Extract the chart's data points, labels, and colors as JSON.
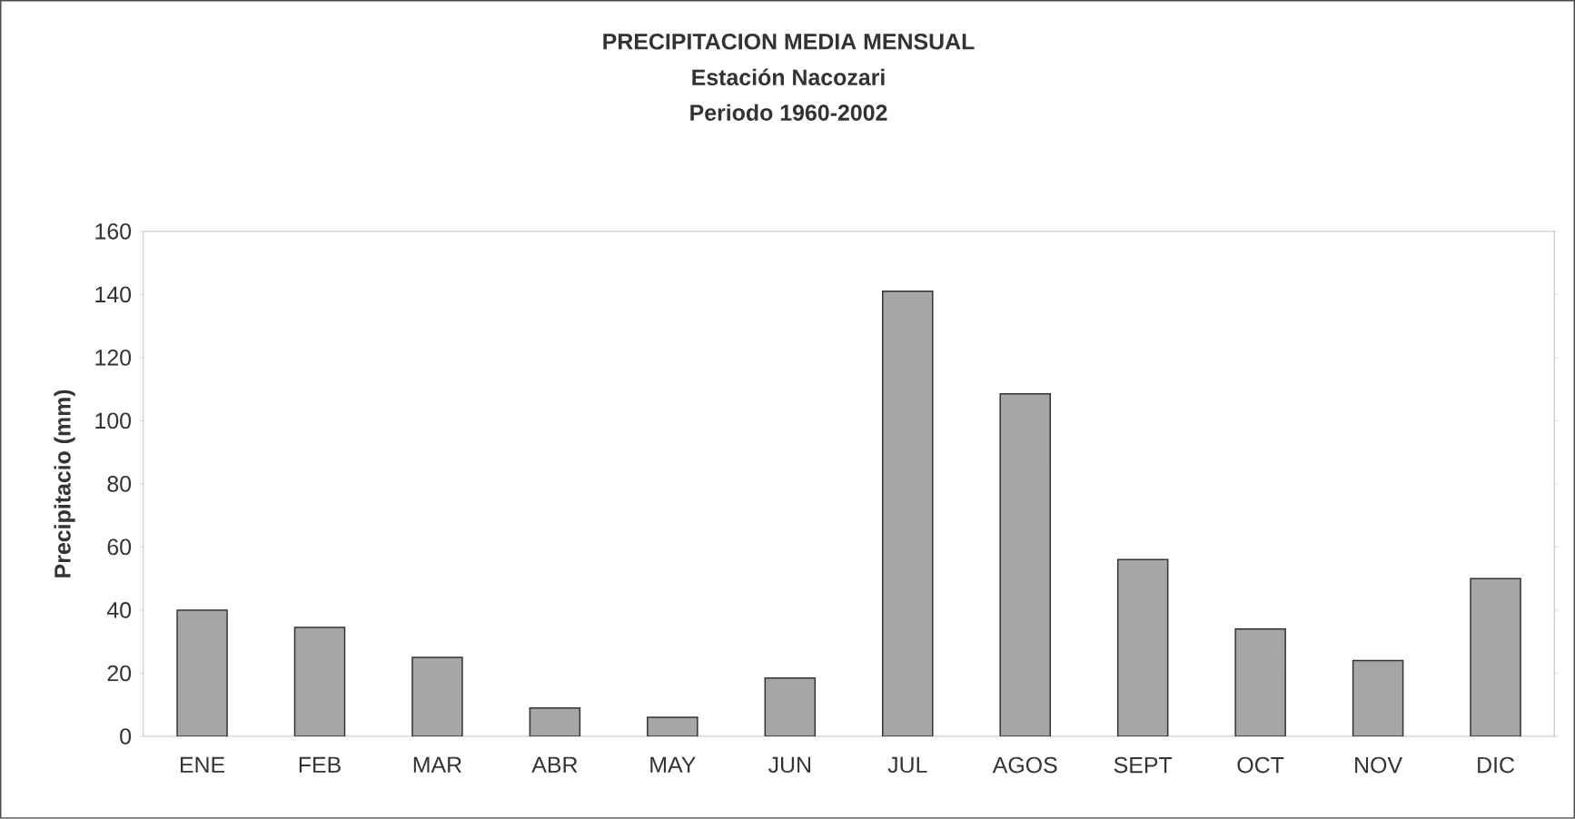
{
  "chart_data": {
    "type": "bar",
    "title": "PRECIPITACION MEDIA MENSUAL",
    "subtitle": "Estación Nacozari",
    "annotations": [
      "Periodo 1960-2002"
    ],
    "ylabel": "Precipitacio (mm)",
    "categories": [
      "ENE",
      "FEB",
      "MAR",
      "ABR",
      "MAY",
      "JUN",
      "JUL",
      "AGOS",
      "SEPT",
      "OCT",
      "NOV",
      "DIC"
    ],
    "values": [
      40,
      34.5,
      25,
      9,
      6,
      18.5,
      141,
      108.5,
      56,
      34,
      24,
      50
    ],
    "color": "#a6a6a6",
    "ylim": [
      0,
      160
    ],
    "yticks": [
      0,
      20,
      40,
      60,
      80,
      100,
      120,
      140,
      160
    ],
    "grid": false
  }
}
